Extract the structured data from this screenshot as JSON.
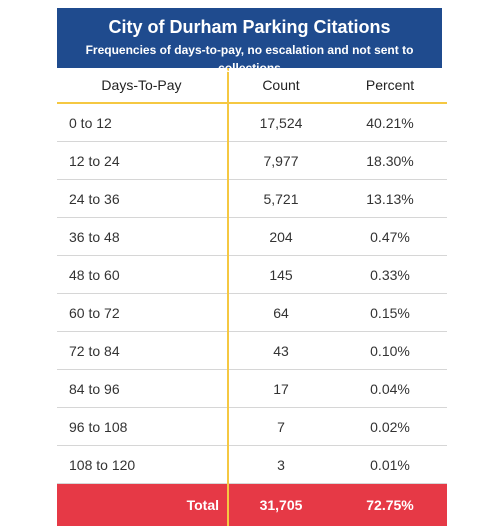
{
  "title": "City of Durham Parking Citations",
  "subtitle": "Frequencies of days-to-pay, no escalation and not sent to collections",
  "headers": [
    "Days-To-Pay",
    "Count",
    "Percent"
  ],
  "rows": [
    {
      "range": "0 to 12",
      "count": "17,524",
      "percent": "40.21%"
    },
    {
      "range": "12 to 24",
      "count": "7,977",
      "percent": "18.30%"
    },
    {
      "range": "24 to 36",
      "count": "5,721",
      "percent": "13.13%"
    },
    {
      "range": "36 to 48",
      "count": "204",
      "percent": "0.47%"
    },
    {
      "range": "48 to 60",
      "count": "145",
      "percent": "0.33%"
    },
    {
      "range": "60 to 72",
      "count": "64",
      "percent": "0.15%"
    },
    {
      "range": "72 to 84",
      "count": "43",
      "percent": "0.10%"
    },
    {
      "range": "84 to 96",
      "count": "17",
      "percent": "0.04%"
    },
    {
      "range": "96 to 108",
      "count": "7",
      "percent": "0.02%"
    },
    {
      "range": "108 to 120",
      "count": "3",
      "percent": "0.01%"
    }
  ],
  "total": {
    "label": "Total",
    "count": "31,705",
    "percent": "72.75%"
  },
  "colors": {
    "header_bg": "#1f4b8e",
    "accent": "#f5c842",
    "total_bg": "#e63946"
  }
}
